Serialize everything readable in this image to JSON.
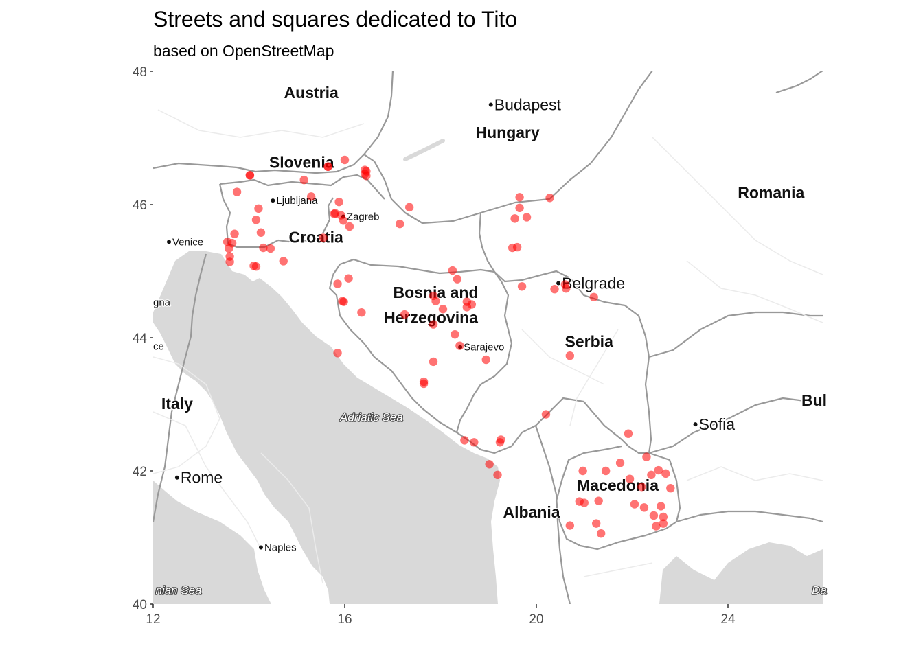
{
  "title": "Streets and squares dedicated to Tito",
  "subtitle": "based on OpenStreetMap",
  "colors": {
    "point": "#ff0000",
    "sea": "#d9d9d9",
    "border": "#999999",
    "land": "#ffffff"
  },
  "axes": {
    "x_ticks": [
      12,
      16,
      20,
      24
    ],
    "y_ticks": [
      40,
      42,
      44,
      46,
      48
    ],
    "xlim": [
      12,
      26
    ],
    "ylim": [
      40,
      48
    ]
  },
  "countries": [
    {
      "name": "Austria",
      "lon": 15.3,
      "lat": 47.6
    },
    {
      "name": "Hungary",
      "lon": 19.4,
      "lat": 47.0
    },
    {
      "name": "Slovenia",
      "lon": 15.1,
      "lat": 46.55
    },
    {
      "name": "Romania",
      "lon": 24.9,
      "lat": 46.1
    },
    {
      "name": "Croatia",
      "lon": 15.4,
      "lat": 45.43
    },
    {
      "name": "Bosnia and",
      "lon": 17.9,
      "lat": 44.6
    },
    {
      "name": "Herzegovina",
      "lon": 17.8,
      "lat": 44.22
    },
    {
      "name": "Serbia",
      "lon": 21.1,
      "lat": 43.86
    },
    {
      "name": "Italy",
      "lon": 12.5,
      "lat": 42.93
    },
    {
      "name": "Bul",
      "lon": 25.8,
      "lat": 42.98
    },
    {
      "name": "Macedonia",
      "lon": 21.7,
      "lat": 41.7
    },
    {
      "name": "Albania",
      "lon": 19.9,
      "lat": 41.3
    }
  ],
  "cities": [
    {
      "name": "Budapest",
      "lon": 19.05,
      "lat": 47.5,
      "size": "big"
    },
    {
      "name": "Ljubljana",
      "lon": 14.5,
      "lat": 46.06,
      "size": "small"
    },
    {
      "name": "Zagreb",
      "lon": 15.97,
      "lat": 45.82,
      "size": "small"
    },
    {
      "name": "Venice",
      "lon": 12.33,
      "lat": 45.44,
      "size": "small"
    },
    {
      "name": "Belgrade",
      "lon": 20.46,
      "lat": 44.82,
      "size": "big"
    },
    {
      "name": "Sarajevo",
      "lon": 18.41,
      "lat": 43.86,
      "size": "small"
    },
    {
      "name": "Sofia",
      "lon": 23.32,
      "lat": 42.7,
      "size": "big"
    },
    {
      "name": "Rome",
      "lon": 12.5,
      "lat": 41.9,
      "size": "big"
    },
    {
      "name": "Naples",
      "lon": 14.25,
      "lat": 40.85,
      "size": "small"
    }
  ],
  "partial_labels": [
    {
      "name": "gna",
      "lon": 12.0,
      "lat": 44.48
    },
    {
      "name": "ce",
      "lon": 12.0,
      "lat": 43.82
    }
  ],
  "seas": [
    {
      "name": "Adriatic Sea",
      "lon": 15.9,
      "lat": 42.75
    },
    {
      "name": "nian Sea",
      "lon": 12.05,
      "lat": 40.15
    },
    {
      "name": "Da",
      "lon": 25.75,
      "lat": 40.15
    }
  ],
  "chart_data": {
    "type": "scatter",
    "title": "Streets and squares dedicated to Tito",
    "subtitle": "based on OpenStreetMap",
    "xlim": [
      12,
      26
    ],
    "ylim": [
      40,
      48
    ],
    "points": [
      [
        14.02,
        46.44
      ],
      [
        14.02,
        46.44
      ],
      [
        15.65,
        46.57
      ],
      [
        15.65,
        46.57
      ],
      [
        16.0,
        46.67
      ],
      [
        15.15,
        46.37
      ],
      [
        16.42,
        46.52
      ],
      [
        16.45,
        46.43
      ],
      [
        16.45,
        46.5
      ],
      [
        16.42,
        46.46
      ],
      [
        13.75,
        46.19
      ],
      [
        14.2,
        45.94
      ],
      [
        14.15,
        45.77
      ],
      [
        14.25,
        45.58
      ],
      [
        13.7,
        45.56
      ],
      [
        13.55,
        45.44
      ],
      [
        13.65,
        45.42
      ],
      [
        13.58,
        45.34
      ],
      [
        13.6,
        45.22
      ],
      [
        13.6,
        45.14
      ],
      [
        14.3,
        45.35
      ],
      [
        14.45,
        45.34
      ],
      [
        14.1,
        45.08
      ],
      [
        14.15,
        45.07
      ],
      [
        14.72,
        45.15
      ],
      [
        15.3,
        46.12
      ],
      [
        15.55,
        45.5
      ],
      [
        15.8,
        45.87
      ],
      [
        15.78,
        45.86
      ],
      [
        15.88,
        46.04
      ],
      [
        15.92,
        45.84
      ],
      [
        15.97,
        45.76
      ],
      [
        16.1,
        45.67
      ],
      [
        17.15,
        45.71
      ],
      [
        17.35,
        45.96
      ],
      [
        15.85,
        44.81
      ],
      [
        16.08,
        44.89
      ],
      [
        15.95,
        44.55
      ],
      [
        15.98,
        44.54
      ],
      [
        16.35,
        44.38
      ],
      [
        15.85,
        43.77
      ],
      [
        17.25,
        44.35
      ],
      [
        17.85,
        44.63
      ],
      [
        17.9,
        44.55
      ],
      [
        18.05,
        44.43
      ],
      [
        17.85,
        44.2
      ],
      [
        18.25,
        45.01
      ],
      [
        18.35,
        44.88
      ],
      [
        18.55,
        44.54
      ],
      [
        18.65,
        44.5
      ],
      [
        18.55,
        44.46
      ],
      [
        18.3,
        44.05
      ],
      [
        18.4,
        43.88
      ],
      [
        17.85,
        43.64
      ],
      [
        18.95,
        43.67
      ],
      [
        17.65,
        43.34
      ],
      [
        17.65,
        43.31
      ],
      [
        19.65,
        46.11
      ],
      [
        19.65,
        45.95
      ],
      [
        19.55,
        45.79
      ],
      [
        19.8,
        45.81
      ],
      [
        19.5,
        45.35
      ],
      [
        19.6,
        45.36
      ],
      [
        20.28,
        46.1
      ],
      [
        19.7,
        44.77
      ],
      [
        20.38,
        44.73
      ],
      [
        20.6,
        44.8
      ],
      [
        20.62,
        44.74
      ],
      [
        21.2,
        44.61
      ],
      [
        20.7,
        43.73
      ],
      [
        20.2,
        42.85
      ],
      [
        18.5,
        42.46
      ],
      [
        18.7,
        42.43
      ],
      [
        19.26,
        42.47
      ],
      [
        19.24,
        42.43
      ],
      [
        19.02,
        42.1
      ],
      [
        19.19,
        41.94
      ],
      [
        21.92,
        42.56
      ],
      [
        20.97,
        42.0
      ],
      [
        21.45,
        42.0
      ],
      [
        21.75,
        42.12
      ],
      [
        21.95,
        41.88
      ],
      [
        22.3,
        42.21
      ],
      [
        22.55,
        42.01
      ],
      [
        22.7,
        41.96
      ],
      [
        22.4,
        41.94
      ],
      [
        22.2,
        41.76
      ],
      [
        22.8,
        41.74
      ],
      [
        21.3,
        41.55
      ],
      [
        20.9,
        41.54
      ],
      [
        21.0,
        41.52
      ],
      [
        22.05,
        41.5
      ],
      [
        22.25,
        41.45
      ],
      [
        22.45,
        41.33
      ],
      [
        22.6,
        41.47
      ],
      [
        22.65,
        41.31
      ],
      [
        22.5,
        41.17
      ],
      [
        22.65,
        41.21
      ],
      [
        20.7,
        41.18
      ],
      [
        21.25,
        41.21
      ],
      [
        21.35,
        41.06
      ]
    ]
  }
}
